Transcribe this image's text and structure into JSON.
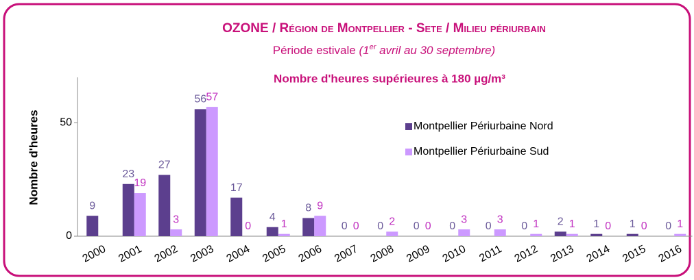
{
  "chart_data": {
    "type": "bar",
    "title": "OZONE / Région de Montpellier - Sete / Milieu périurbain",
    "subtitle": "Période estivale",
    "subtitle_note": [
      "(1",
      "er",
      " avril au 30 septembre)"
    ],
    "chart_title": "Nombre d'heures supérieures à 180 µg/m³",
    "y_label": "Nombre d'heures",
    "categories": [
      "2000",
      "2001",
      "2002",
      "2003",
      "2004",
      "2005",
      "2006",
      "2007",
      "2008",
      "2009",
      "2010",
      "2011",
      "2012",
      "2013",
      "2014",
      "2015",
      "2016"
    ],
    "series": [
      {
        "name": "Montpellier Périurbaine Nord",
        "color": "#5c3f8e",
        "label_color": "#6b5a9a",
        "values": [
          9,
          23,
          27,
          56,
          17,
          4,
          8,
          0,
          0,
          0,
          0,
          0,
          0,
          2,
          1,
          1,
          0
        ]
      },
      {
        "name": "Montpellier Périurbaine Sud",
        "color": "#cc99ff",
        "label_color": "#c030c0",
        "values": [
          null,
          19,
          3,
          57,
          0,
          1,
          9,
          0,
          2,
          0,
          3,
          3,
          1,
          1,
          0,
          0,
          1
        ]
      }
    ],
    "ylim": [
      0,
      70
    ],
    "yticks": [
      0,
      50
    ],
    "title_color": "#c8107a"
  }
}
